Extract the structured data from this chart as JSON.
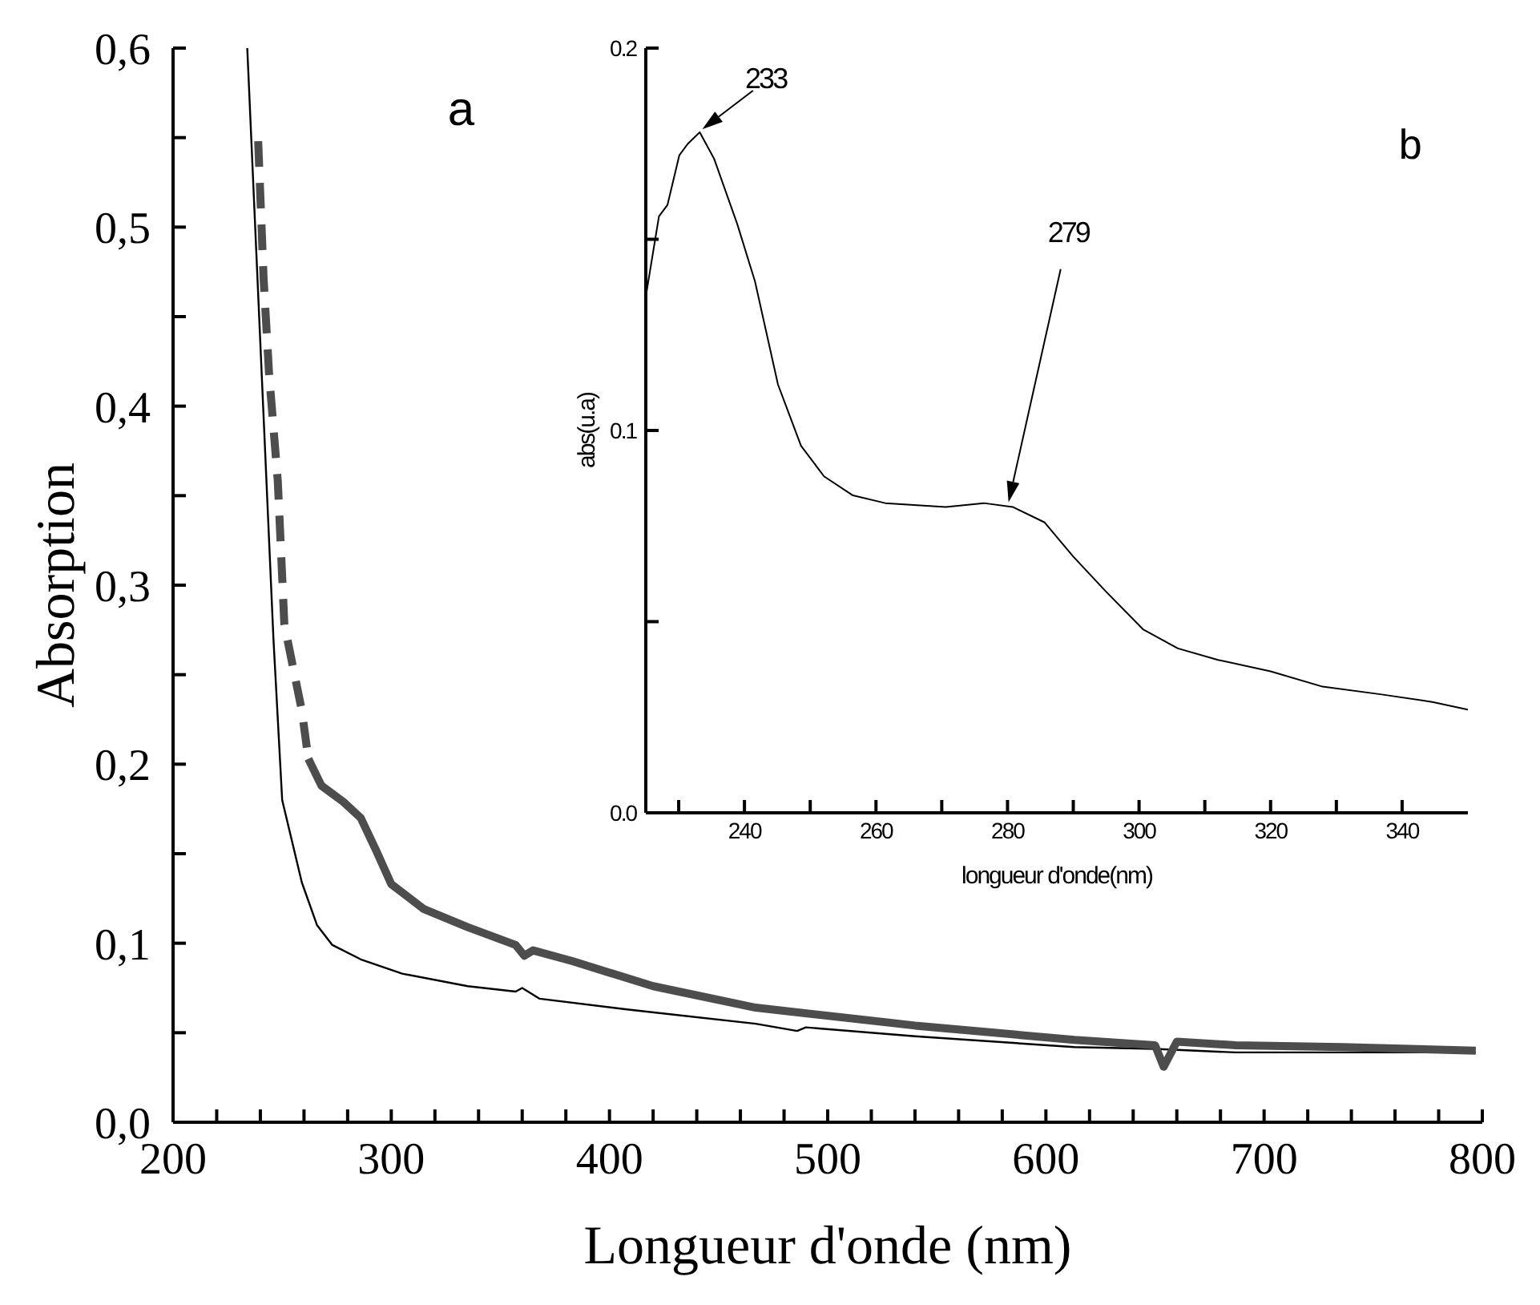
{
  "chart_data": [
    {
      "type": "line",
      "xlabel": "Longueur d'onde (nm)",
      "ylabel": "Absorption",
      "xlim": [
        200,
        800
      ],
      "ylim": [
        0,
        0.6
      ],
      "xticks": [
        200,
        {
          "value": 220,
          "label": null
        },
        {
          "value": 240,
          "label": null
        },
        {
          "value": 260,
          "label": null
        },
        {
          "value": 280,
          "label": null
        },
        300,
        {
          "value": 320,
          "label": null
        },
        {
          "value": 340,
          "label": null
        },
        {
          "value": 360,
          "label": null
        },
        {
          "value": 380,
          "label": null
        },
        400,
        {
          "value": 420,
          "label": null
        },
        {
          "value": 440,
          "label": null
        },
        {
          "value": 460,
          "label": null
        },
        {
          "value": 480,
          "label": null
        },
        500,
        {
          "value": 520,
          "label": null
        },
        {
          "value": 540,
          "label": null
        },
        {
          "value": 560,
          "label": null
        },
        {
          "value": 580,
          "label": null
        },
        600,
        {
          "value": 620,
          "label": null
        },
        {
          "value": 640,
          "label": null
        },
        {
          "value": 660,
          "label": null
        },
        {
          "value": 680,
          "label": null
        },
        700,
        {
          "value": 720,
          "label": null
        },
        {
          "value": 740,
          "label": null
        },
        {
          "value": 760,
          "label": null
        },
        {
          "value": 780,
          "label": null
        },
        800
      ],
      "yticks": [
        {
          "value": 0,
          "label": "0,0"
        },
        {
          "value": 0.05,
          "label": null
        },
        {
          "value": 0.1,
          "label": "0,1"
        },
        {
          "value": 0.15,
          "label": null
        },
        {
          "value": 0.2,
          "label": "0,2"
        },
        {
          "value": 0.25,
          "label": null
        },
        {
          "value": 0.3,
          "label": "0,3"
        },
        {
          "value": 0.35,
          "label": null
        },
        {
          "value": 0.4,
          "label": "0,4"
        },
        {
          "value": 0.45,
          "label": null
        },
        {
          "value": 0.5,
          "label": "0,5"
        },
        {
          "value": 0.55,
          "label": null
        },
        {
          "value": 0.6,
          "label": "0,6"
        }
      ],
      "grid": false,
      "marker": "none",
      "annotations": [
        "a"
      ],
      "series": [
        {
          "color": "#000000",
          "line_style": "solid",
          "x": [
            234,
            246,
            250,
            259,
            266,
            273,
            286,
            305,
            335,
            357,
            360,
            368,
            408,
            467,
            486,
            490,
            540,
            613,
            650,
            687,
            736,
            797
          ],
          "values": [
            0.6,
            0.27,
            0.18,
            0.134,
            0.11,
            0.099,
            0.091,
            0.083,
            0.076,
            0.073,
            0.075,
            0.069,
            0.063,
            0.055,
            0.051,
            0.053,
            0.048,
            0.042,
            0.041,
            0.039,
            0.039,
            0.039
          ]
        },
        {
          "color": "#4d4d4d",
          "line_style": "dashed",
          "x": [
            239,
            241.5,
            244,
            248,
            251,
            254,
            259,
            262
          ],
          "values": [
            0.548,
            0.471,
            0.418,
            0.358,
            0.278,
            0.26,
            0.23,
            0.203
          ]
        },
        {
          "color": "#4d4d4d",
          "line_style": "solid",
          "x": [
            262,
            268,
            278,
            286,
            293,
            300,
            315,
            335,
            357,
            361,
            365,
            383,
            420,
            467,
            540,
            613,
            650,
            654,
            660,
            687,
            736,
            797
          ],
          "values": [
            0.203,
            0.188,
            0.179,
            0.17,
            0.152,
            0.133,
            0.119,
            0.109,
            0.099,
            0.093,
            0.096,
            0.09,
            0.076,
            0.064,
            0.054,
            0.046,
            0.043,
            0.031,
            0.045,
            0.043,
            0.042,
            0.04
          ]
        }
      ]
    },
    {
      "type": "line",
      "xlabel": "longueur d'onde(nm)",
      "ylabel": "abs(u.a)",
      "xlim": [
        225,
        350
      ],
      "ylim": [
        0,
        0.2
      ],
      "xticks": [
        {
          "value": 230,
          "label": null
        },
        240,
        {
          "value": 250,
          "label": null
        },
        260,
        {
          "value": 270,
          "label": null
        },
        280,
        {
          "value": 290,
          "label": null
        },
        300,
        {
          "value": 310,
          "label": null
        },
        320,
        {
          "value": 330,
          "label": null
        },
        340
      ],
      "yticks": [
        {
          "value": 0,
          "label": "0.0"
        },
        {
          "value": 0.05,
          "label": null
        },
        {
          "value": 0.1,
          "label": "0.1"
        },
        {
          "value": 0.15,
          "label": null
        },
        {
          "value": 0.2,
          "label": "0.2"
        }
      ],
      "grid": false,
      "marker": "none",
      "annotations": [
        "b",
        {
          "text": "233",
          "x": 233,
          "y": 0.178
        },
        "279"
      ],
      "series": [
        {
          "color": "#000000",
          "line_style": "solid",
          "x": [
            225,
            227,
            228.3,
            230.1,
            231.4,
            233.2,
            235.4,
            238.9,
            241.6,
            245.1,
            248.6,
            252.1,
            256.5,
            261.4,
            270.6,
            276.4,
            280.8,
            285.6,
            290,
            294.9,
            300.6,
            305.9,
            312,
            320,
            327.9,
            336.7,
            344.6,
            350
          ],
          "values": [
            0.135,
            0.156,
            0.159,
            0.172,
            0.175,
            0.178,
            0.171,
            0.154,
            0.139,
            0.112,
            0.096,
            0.088,
            0.083,
            0.081,
            0.08,
            0.081,
            0.08,
            0.076,
            0.067,
            0.058,
            0.048,
            0.043,
            0.04,
            0.037,
            0.033,
            0.031,
            0.029,
            0.027
          ]
        }
      ]
    }
  ]
}
